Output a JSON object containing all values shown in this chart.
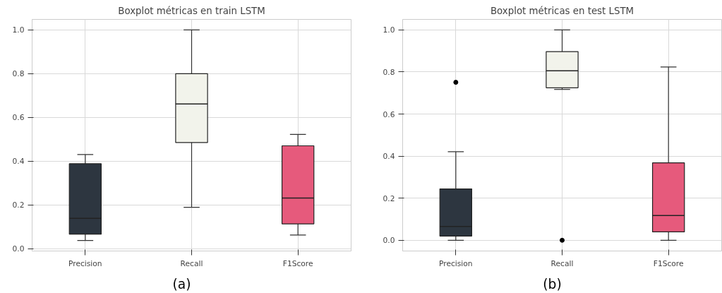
{
  "chart_data": [
    {
      "type": "box",
      "title": "Boxplot métricas en train LSTM",
      "categories": [
        "Precision",
        "Recall",
        "F1Score"
      ],
      "colors": [
        "#2d3640",
        "#f2f3eb",
        "#e65a7c"
      ],
      "boxes": [
        {
          "low": 0.037,
          "q1": 0.066,
          "median": 0.138,
          "q3": 0.388,
          "high": 0.43
        },
        {
          "low": 0.189,
          "q1": 0.485,
          "median": 0.661,
          "q3": 0.8,
          "high": 1.0
        },
        {
          "low": 0.062,
          "q1": 0.113,
          "median": 0.231,
          "q3": 0.47,
          "high": 0.522
        }
      ],
      "ylim": [
        -0.011,
        1.048
      ],
      "yticks": [
        {
          "value": 0,
          "label": "0.0"
        },
        {
          "value": 0.2,
          "label": "0.2"
        },
        {
          "value": 0.4,
          "label": "0.4"
        },
        {
          "value": 0.6,
          "label": "0.6"
        },
        {
          "value": 0.8,
          "label": "0.8"
        },
        {
          "value": 1,
          "label": "1.0"
        }
      ],
      "grid": true,
      "annotations": [
        "(a)"
      ]
    },
    {
      "type": "box",
      "title": "Boxplot métricas en test LSTM",
      "categories": [
        "Precision",
        "Recall",
        "F1Score"
      ],
      "colors": [
        "#2d3640",
        "#f2f3eb",
        "#e65a7c"
      ],
      "boxes": [
        {
          "low": 0,
          "q1": 0.02,
          "median": 0.066,
          "q3": 0.244,
          "high": 0.421,
          "outliers": [
            0.751
          ]
        },
        {
          "low": 0.717,
          "q1": 0.725,
          "median": 0.806,
          "q3": 0.897,
          "high": 1.0,
          "outliers": [
            0
          ]
        },
        {
          "low": 0,
          "q1": 0.04,
          "median": 0.118,
          "q3": 0.368,
          "high": 0.824
        }
      ],
      "ylim": [
        -0.051,
        1.05
      ],
      "yticks": [
        {
          "value": 0,
          "label": "0.0"
        },
        {
          "value": 0.2,
          "label": "0.2"
        },
        {
          "value": 0.4,
          "label": "0.4"
        },
        {
          "value": 0.6,
          "label": "0.6"
        },
        {
          "value": 0.8,
          "label": "0.8"
        },
        {
          "value": 1,
          "label": "1.0"
        }
      ],
      "grid": true,
      "annotations": [
        "(b)"
      ]
    }
  ]
}
